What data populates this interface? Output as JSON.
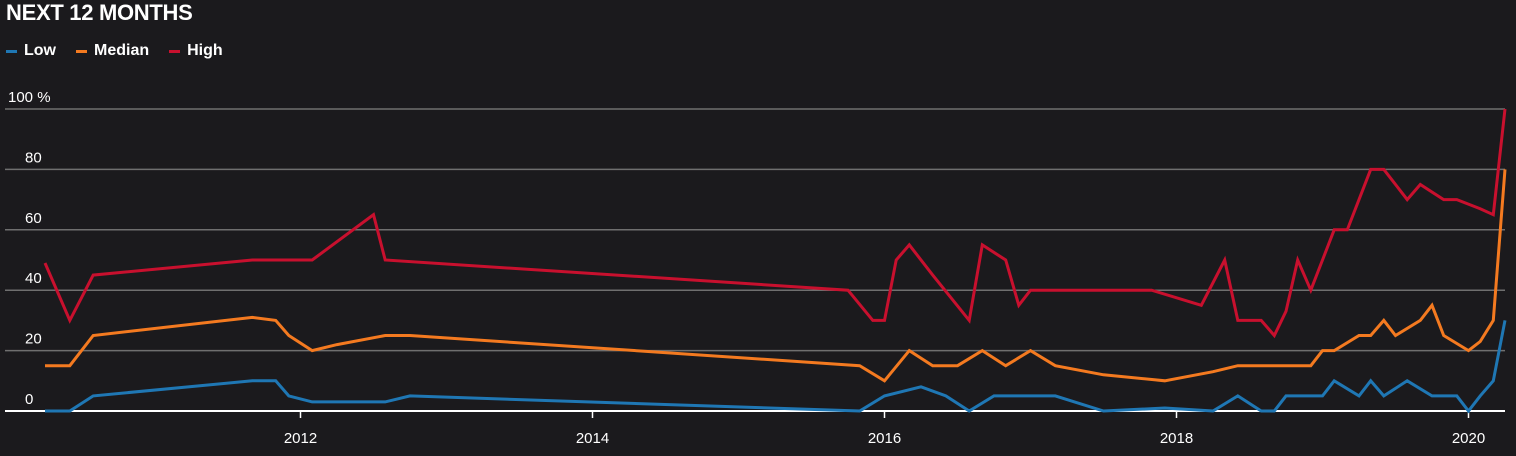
{
  "title": "NEXT 12 MONTHS",
  "legend": [
    {
      "name": "Low",
      "color": "#1f77b4"
    },
    {
      "name": "Median",
      "color": "#f47a20"
    },
    {
      "name": "High",
      "color": "#c8102e"
    }
  ],
  "chart_data": {
    "type": "line",
    "x_axis": {
      "ticks": [
        "2012",
        "2014",
        "2016",
        "2018",
        "2020"
      ],
      "tick_values": [
        2012,
        2014,
        2016,
        2018,
        2020
      ],
      "range": [
        2010.25,
        2020.25
      ]
    },
    "y_axis": {
      "ticks": [
        "0",
        "20",
        "40",
        "60",
        "80",
        "100 %"
      ],
      "tick_values": [
        0,
        20,
        40,
        60,
        80,
        100
      ],
      "range": [
        0,
        100
      ]
    },
    "grid": true,
    "legend_position": "top-left",
    "series": [
      {
        "name": "Low",
        "color": "#1f77b4",
        "x": [
          2010.25,
          2010.42,
          2010.58,
          2011.67,
          2011.83,
          2011.92,
          2012.08,
          2012.25,
          2012.42,
          2012.58,
          2012.75,
          2015.83,
          2016.0,
          2016.25,
          2016.42,
          2016.58,
          2016.75,
          2016.92,
          2017.17,
          2017.5,
          2017.92,
          2018.25,
          2018.42,
          2018.58,
          2018.67,
          2018.75,
          2018.92,
          2019.0,
          2019.08,
          2019.25,
          2019.33,
          2019.42,
          2019.58,
          2019.75,
          2019.92,
          2020.0,
          2020.08,
          2020.17,
          2020.25
        ],
        "y": [
          0,
          0,
          5,
          10,
          10,
          5,
          3,
          3,
          3,
          3,
          5,
          0,
          5,
          8,
          5,
          0,
          5,
          5,
          5,
          0,
          1,
          0,
          5,
          0,
          0,
          5,
          5,
          5,
          10,
          5,
          10,
          5,
          10,
          5,
          5,
          0,
          5,
          10,
          30
        ]
      },
      {
        "name": "Median",
        "color": "#f47a20",
        "x": [
          2010.25,
          2010.42,
          2010.58,
          2011.67,
          2011.83,
          2011.92,
          2012.08,
          2012.25,
          2012.58,
          2012.75,
          2015.83,
          2016.0,
          2016.17,
          2016.33,
          2016.5,
          2016.67,
          2016.83,
          2017.0,
          2017.17,
          2017.5,
          2017.92,
          2018.25,
          2018.42,
          2018.58,
          2018.75,
          2018.92,
          2019.0,
          2019.08,
          2019.25,
          2019.33,
          2019.42,
          2019.5,
          2019.67,
          2019.75,
          2019.83,
          2020.0,
          2020.08,
          2020.17,
          2020.25
        ],
        "y": [
          15,
          15,
          25,
          31,
          30,
          25,
          20,
          22,
          25,
          25,
          15,
          10,
          20,
          15,
          15,
          20,
          15,
          20,
          15,
          12,
          10,
          13,
          15,
          15,
          15,
          15,
          20,
          20,
          25,
          25,
          30,
          25,
          30,
          35,
          25,
          20,
          23,
          30,
          80
        ]
      },
      {
        "name": "High",
        "color": "#c8102e",
        "x": [
          2010.25,
          2010.42,
          2010.58,
          2011.67,
          2011.83,
          2012.08,
          2012.5,
          2012.58,
          2015.75,
          2015.92,
          2016.0,
          2016.08,
          2016.17,
          2016.33,
          2016.58,
          2016.67,
          2016.83,
          2016.92,
          2017.0,
          2017.17,
          2017.5,
          2017.83,
          2018.17,
          2018.33,
          2018.42,
          2018.58,
          2018.67,
          2018.75,
          2018.83,
          2018.92,
          2019.0,
          2019.08,
          2019.17,
          2019.33,
          2019.42,
          2019.58,
          2019.67,
          2019.83,
          2019.92,
          2020.08,
          2020.17,
          2020.25
        ],
        "y": [
          49,
          30,
          45,
          50,
          50,
          50,
          65,
          50,
          40,
          30,
          30,
          50,
          55,
          45,
          30,
          55,
          50,
          35,
          40,
          40,
          40,
          40,
          35,
          50,
          30,
          30,
          25,
          33,
          50,
          40,
          50,
          60,
          60,
          80,
          80,
          70,
          75,
          70,
          70,
          67,
          65,
          100
        ]
      }
    ]
  }
}
